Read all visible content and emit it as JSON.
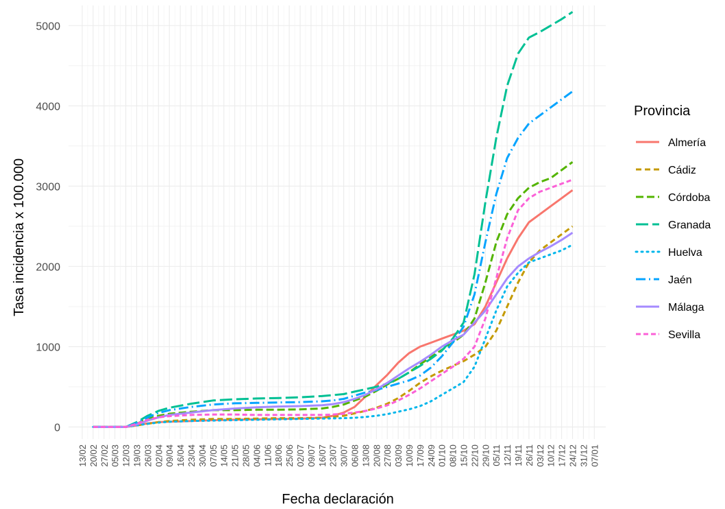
{
  "chart_data": {
    "type": "line",
    "xlabel": "Fecha declaración",
    "ylabel": "Tasa incidencia x 100.000",
    "ylim": [
      -150,
      5250
    ],
    "yticks": [
      0,
      1000,
      2000,
      3000,
      4000,
      5000
    ],
    "categories": [
      "13/02",
      "20/02",
      "27/02",
      "05/03",
      "12/03",
      "19/03",
      "26/03",
      "02/04",
      "09/04",
      "16/04",
      "23/04",
      "30/04",
      "07/05",
      "14/05",
      "21/05",
      "28/05",
      "04/06",
      "11/06",
      "18/06",
      "25/06",
      "02/07",
      "09/07",
      "16/07",
      "23/07",
      "30/07",
      "06/08",
      "13/08",
      "20/08",
      "27/08",
      "03/09",
      "10/09",
      "17/09",
      "24/09",
      "01/10",
      "08/10",
      "15/10",
      "22/10",
      "29/10",
      "05/11",
      "12/11",
      "19/11",
      "26/11",
      "03/12",
      "10/12",
      "17/12",
      "24/12",
      "31/12",
      "07/01"
    ],
    "legend": {
      "title": "Provincia",
      "position": "right"
    },
    "grid": true,
    "series": [
      {
        "name": "Almería",
        "color": "#F8766D",
        "dash": "solid",
        "points": [
          [
            1,
            0
          ],
          [
            4,
            0
          ],
          [
            5,
            20
          ],
          [
            6,
            45
          ],
          [
            7,
            60
          ],
          [
            8,
            65
          ],
          [
            10,
            75
          ],
          [
            12,
            85
          ],
          [
            14,
            90
          ],
          [
            16,
            95
          ],
          [
            18,
            100
          ],
          [
            20,
            105
          ],
          [
            22,
            115
          ],
          [
            23,
            140
          ],
          [
            24,
            180
          ],
          [
            25,
            250
          ],
          [
            26,
            380
          ],
          [
            27,
            520
          ],
          [
            28,
            650
          ],
          [
            29,
            800
          ],
          [
            30,
            920
          ],
          [
            31,
            1000
          ],
          [
            32,
            1050
          ],
          [
            33,
            1100
          ],
          [
            34,
            1150
          ],
          [
            35,
            1200
          ],
          [
            36,
            1280
          ],
          [
            37,
            1500
          ],
          [
            38,
            1800
          ],
          [
            39,
            2100
          ],
          [
            40,
            2350
          ],
          [
            41,
            2550
          ],
          [
            42,
            2650
          ],
          [
            43,
            2750
          ],
          [
            44,
            2850
          ],
          [
            45,
            2950
          ]
        ]
      },
      {
        "name": "Cádiz",
        "color": "#C49A00",
        "dash": "8,5",
        "points": [
          [
            1,
            0
          ],
          [
            4,
            0
          ],
          [
            5,
            20
          ],
          [
            6,
            40
          ],
          [
            7,
            60
          ],
          [
            8,
            75
          ],
          [
            10,
            90
          ],
          [
            12,
            100
          ],
          [
            14,
            100
          ],
          [
            16,
            105
          ],
          [
            18,
            110
          ],
          [
            20,
            110
          ],
          [
            22,
            115
          ],
          [
            24,
            140
          ],
          [
            25,
            170
          ],
          [
            26,
            200
          ],
          [
            27,
            240
          ],
          [
            28,
            290
          ],
          [
            29,
            360
          ],
          [
            30,
            450
          ],
          [
            31,
            550
          ],
          [
            32,
            630
          ],
          [
            33,
            700
          ],
          [
            34,
            760
          ],
          [
            35,
            820
          ],
          [
            36,
            900
          ],
          [
            37,
            1000
          ],
          [
            38,
            1200
          ],
          [
            39,
            1500
          ],
          [
            40,
            1800
          ],
          [
            41,
            2050
          ],
          [
            42,
            2200
          ],
          [
            43,
            2300
          ],
          [
            44,
            2400
          ],
          [
            45,
            2500
          ]
        ]
      },
      {
        "name": "Córdoba",
        "color": "#53B400",
        "dash": "11,5",
        "points": [
          [
            1,
            0
          ],
          [
            4,
            0
          ],
          [
            5,
            40
          ],
          [
            6,
            100
          ],
          [
            7,
            140
          ],
          [
            8,
            165
          ],
          [
            10,
            190
          ],
          [
            12,
            210
          ],
          [
            14,
            210
          ],
          [
            16,
            215
          ],
          [
            18,
            215
          ],
          [
            20,
            220
          ],
          [
            22,
            230
          ],
          [
            23,
            250
          ],
          [
            24,
            280
          ],
          [
            25,
            330
          ],
          [
            26,
            380
          ],
          [
            27,
            450
          ],
          [
            28,
            530
          ],
          [
            29,
            600
          ],
          [
            30,
            680
          ],
          [
            31,
            780
          ],
          [
            32,
            870
          ],
          [
            33,
            960
          ],
          [
            34,
            1050
          ],
          [
            35,
            1150
          ],
          [
            36,
            1350
          ],
          [
            37,
            1800
          ],
          [
            38,
            2300
          ],
          [
            39,
            2650
          ],
          [
            40,
            2850
          ],
          [
            41,
            2980
          ],
          [
            42,
            3050
          ],
          [
            43,
            3100
          ],
          [
            44,
            3200
          ],
          [
            45,
            3300
          ]
        ]
      },
      {
        "name": "Granada",
        "color": "#00C094",
        "dash": "18,6",
        "points": [
          [
            1,
            0
          ],
          [
            4,
            0
          ],
          [
            5,
            60
          ],
          [
            6,
            140
          ],
          [
            7,
            200
          ],
          [
            8,
            240
          ],
          [
            10,
            290
          ],
          [
            12,
            330
          ],
          [
            14,
            345
          ],
          [
            16,
            355
          ],
          [
            18,
            360
          ],
          [
            20,
            370
          ],
          [
            22,
            385
          ],
          [
            24,
            410
          ],
          [
            25,
            440
          ],
          [
            26,
            470
          ],
          [
            27,
            500
          ],
          [
            28,
            540
          ],
          [
            29,
            600
          ],
          [
            30,
            680
          ],
          [
            31,
            760
          ],
          [
            32,
            850
          ],
          [
            33,
            950
          ],
          [
            34,
            1100
          ],
          [
            35,
            1300
          ],
          [
            36,
            1900
          ],
          [
            37,
            2800
          ],
          [
            38,
            3600
          ],
          [
            39,
            4250
          ],
          [
            40,
            4650
          ],
          [
            41,
            4850
          ],
          [
            42,
            4920
          ],
          [
            43,
            5000
          ],
          [
            44,
            5080
          ],
          [
            45,
            5170
          ]
        ]
      },
      {
        "name": "Huelva",
        "color": "#00B6EB",
        "dash": "2,6",
        "points": [
          [
            1,
            0
          ],
          [
            4,
            0
          ],
          [
            5,
            20
          ],
          [
            6,
            40
          ],
          [
            7,
            55
          ],
          [
            8,
            65
          ],
          [
            10,
            75
          ],
          [
            12,
            80
          ],
          [
            14,
            85
          ],
          [
            16,
            90
          ],
          [
            18,
            95
          ],
          [
            20,
            100
          ],
          [
            22,
            105
          ],
          [
            24,
            110
          ],
          [
            25,
            115
          ],
          [
            26,
            125
          ],
          [
            27,
            140
          ],
          [
            28,
            160
          ],
          [
            29,
            190
          ],
          [
            30,
            220
          ],
          [
            31,
            260
          ],
          [
            32,
            320
          ],
          [
            33,
            400
          ],
          [
            34,
            480
          ],
          [
            35,
            560
          ],
          [
            36,
            750
          ],
          [
            37,
            1100
          ],
          [
            38,
            1450
          ],
          [
            39,
            1750
          ],
          [
            40,
            1920
          ],
          [
            41,
            2050
          ],
          [
            42,
            2100
          ],
          [
            43,
            2150
          ],
          [
            44,
            2200
          ],
          [
            45,
            2270
          ]
        ]
      },
      {
        "name": "Jaén",
        "color": "#06A4FF",
        "dash": "14,5,2,5",
        "points": [
          [
            1,
            0
          ],
          [
            4,
            0
          ],
          [
            5,
            50
          ],
          [
            6,
            120
          ],
          [
            7,
            175
          ],
          [
            8,
            210
          ],
          [
            10,
            250
          ],
          [
            12,
            280
          ],
          [
            14,
            295
          ],
          [
            16,
            300
          ],
          [
            18,
            305
          ],
          [
            20,
            310
          ],
          [
            22,
            320
          ],
          [
            23,
            330
          ],
          [
            24,
            350
          ],
          [
            25,
            390
          ],
          [
            26,
            430
          ],
          [
            27,
            460
          ],
          [
            28,
            500
          ],
          [
            29,
            540
          ],
          [
            30,
            580
          ],
          [
            31,
            640
          ],
          [
            32,
            740
          ],
          [
            33,
            880
          ],
          [
            34,
            1050
          ],
          [
            35,
            1250
          ],
          [
            36,
            1650
          ],
          [
            37,
            2300
          ],
          [
            38,
            2900
          ],
          [
            39,
            3350
          ],
          [
            40,
            3600
          ],
          [
            41,
            3780
          ],
          [
            42,
            3880
          ],
          [
            43,
            3980
          ],
          [
            44,
            4080
          ],
          [
            45,
            4180
          ]
        ]
      },
      {
        "name": "Málaga",
        "color": "#A58AFF",
        "dash": "solid",
        "points": [
          [
            1,
            0
          ],
          [
            4,
            0
          ],
          [
            5,
            30
          ],
          [
            6,
            80
          ],
          [
            7,
            120
          ],
          [
            8,
            150
          ],
          [
            10,
            180
          ],
          [
            12,
            210
          ],
          [
            14,
            230
          ],
          [
            16,
            245
          ],
          [
            18,
            255
          ],
          [
            20,
            260
          ],
          [
            22,
            270
          ],
          [
            23,
            285
          ],
          [
            24,
            310
          ],
          [
            25,
            350
          ],
          [
            26,
            400
          ],
          [
            27,
            470
          ],
          [
            28,
            550
          ],
          [
            29,
            640
          ],
          [
            30,
            730
          ],
          [
            31,
            810
          ],
          [
            32,
            900
          ],
          [
            33,
            1000
          ],
          [
            34,
            1080
          ],
          [
            35,
            1150
          ],
          [
            36,
            1300
          ],
          [
            37,
            1450
          ],
          [
            38,
            1650
          ],
          [
            39,
            1850
          ],
          [
            40,
            2000
          ],
          [
            41,
            2100
          ],
          [
            42,
            2180
          ],
          [
            43,
            2250
          ],
          [
            44,
            2330
          ],
          [
            45,
            2420
          ]
        ]
      },
      {
        "name": "Sevilla",
        "color": "#FB61D7",
        "dash": "7,4",
        "points": [
          [
            1,
            0
          ],
          [
            4,
            0
          ],
          [
            5,
            40
          ],
          [
            6,
            90
          ],
          [
            7,
            120
          ],
          [
            8,
            135
          ],
          [
            10,
            150
          ],
          [
            12,
            155
          ],
          [
            14,
            155
          ],
          [
            16,
            150
          ],
          [
            18,
            150
          ],
          [
            20,
            150
          ],
          [
            22,
            150
          ],
          [
            23,
            155
          ],
          [
            24,
            165
          ],
          [
            25,
            180
          ],
          [
            26,
            200
          ],
          [
            27,
            230
          ],
          [
            28,
            270
          ],
          [
            29,
            330
          ],
          [
            30,
            400
          ],
          [
            31,
            480
          ],
          [
            32,
            570
          ],
          [
            33,
            660
          ],
          [
            34,
            750
          ],
          [
            35,
            850
          ],
          [
            36,
            1000
          ],
          [
            37,
            1350
          ],
          [
            38,
            1850
          ],
          [
            39,
            2350
          ],
          [
            40,
            2700
          ],
          [
            41,
            2850
          ],
          [
            42,
            2930
          ],
          [
            43,
            2980
          ],
          [
            44,
            3030
          ],
          [
            45,
            3080
          ]
        ]
      }
    ]
  }
}
